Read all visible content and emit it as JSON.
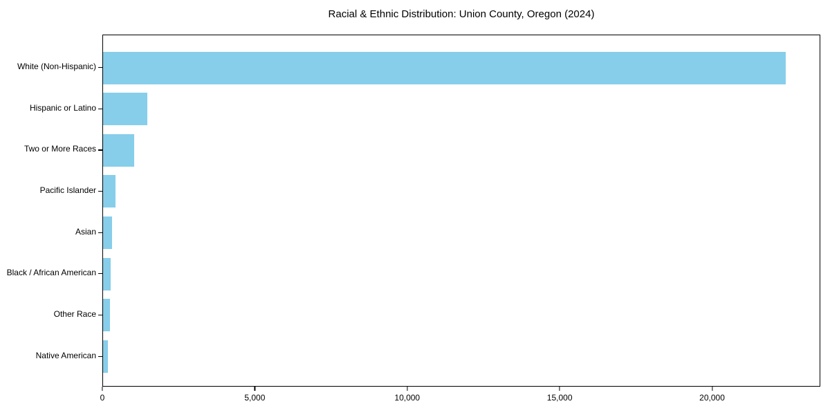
{
  "chart_data": {
    "type": "bar",
    "orientation": "horizontal",
    "title": "Racial & Ethnic Distribution: Union County, Oregon (2024)",
    "xlabel": "",
    "ylabel": "",
    "categories": [
      "White (Non-Hispanic)",
      "Hispanic or Latino",
      "Two or More Races",
      "Pacific Islander",
      "Asian",
      "Black / African American",
      "Other Race",
      "Native American"
    ],
    "values": [
      22430,
      1460,
      1020,
      400,
      305,
      255,
      230,
      150
    ],
    "xlim": [
      0,
      23550
    ],
    "xticks": [
      0,
      5000,
      10000,
      15000,
      20000
    ],
    "xtick_labels": [
      "0",
      "5,000",
      "10,000",
      "15,000",
      "20,000"
    ],
    "bar_color": "#87CEEB",
    "axis_color": "#000000",
    "grid": false,
    "legend": null
  }
}
